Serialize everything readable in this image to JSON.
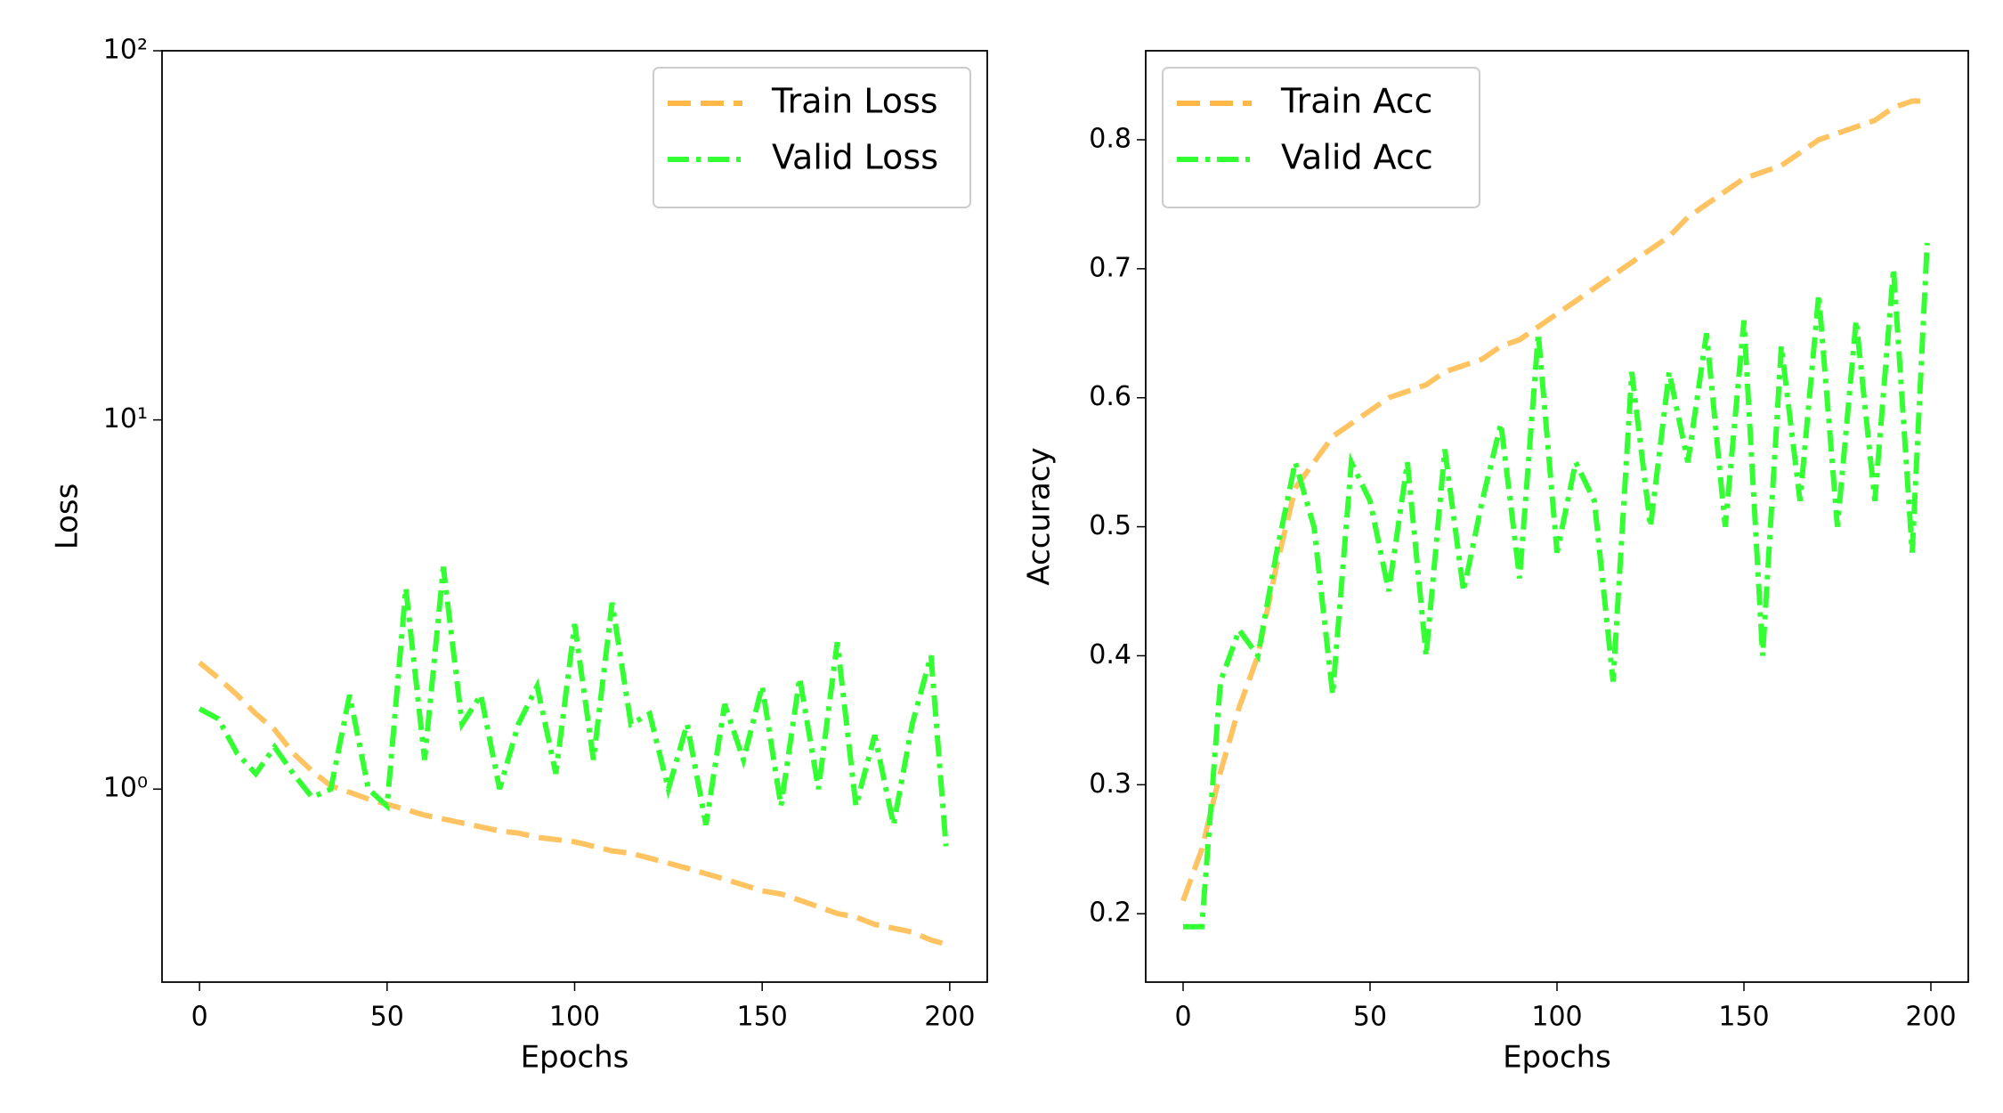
{
  "chart_data": [
    {
      "type": "line",
      "xlabel": "Epochs",
      "ylabel": "Loss",
      "yscale": "log",
      "x": [
        0,
        5,
        10,
        15,
        20,
        25,
        30,
        35,
        40,
        45,
        50,
        55,
        60,
        65,
        70,
        75,
        80,
        85,
        90,
        95,
        100,
        105,
        110,
        115,
        120,
        125,
        130,
        135,
        140,
        145,
        150,
        155,
        160,
        165,
        170,
        175,
        180,
        185,
        190,
        195,
        199
      ],
      "series": [
        {
          "name": "Train Loss",
          "color": "#ffb845",
          "linestyle": "dashed",
          "values": [
            2.2,
            2.0,
            1.8,
            1.6,
            1.45,
            1.25,
            1.12,
            1.02,
            0.98,
            0.94,
            0.91,
            0.88,
            0.85,
            0.83,
            0.81,
            0.79,
            0.77,
            0.76,
            0.74,
            0.73,
            0.72,
            0.7,
            0.68,
            0.67,
            0.65,
            0.63,
            0.61,
            0.59,
            0.57,
            0.55,
            0.53,
            0.52,
            0.5,
            0.48,
            0.46,
            0.45,
            0.43,
            0.42,
            0.41,
            0.39,
            0.38
          ]
        },
        {
          "name": "Valid Loss",
          "color": "#33ff33",
          "linestyle": "dashdot",
          "values": [
            1.65,
            1.55,
            1.25,
            1.1,
            1.3,
            1.1,
            0.95,
            1.0,
            1.8,
            1.0,
            0.9,
            3.5,
            1.2,
            4.0,
            1.5,
            1.8,
            1.0,
            1.5,
            1.9,
            1.1,
            2.8,
            1.2,
            3.2,
            1.5,
            1.6,
            1.0,
            1.5,
            0.8,
            1.7,
            1.2,
            1.9,
            0.9,
            2.0,
            1.0,
            2.5,
            0.9,
            1.4,
            0.8,
            1.5,
            2.3,
            0.7
          ]
        }
      ],
      "xlim": [
        -10,
        210
      ],
      "xticks": [
        0,
        50,
        100,
        150,
        200
      ],
      "ylim": [
        0.3,
        100
      ],
      "yticks": [
        {
          "value": 1,
          "label": "10⁰"
        },
        {
          "value": 10,
          "label": "10¹"
        },
        {
          "value": 100,
          "label": "10²"
        }
      ],
      "legend": "upper right"
    },
    {
      "type": "line",
      "xlabel": "Epochs",
      "ylabel": "Accuracy",
      "x": [
        0,
        5,
        10,
        15,
        20,
        25,
        30,
        35,
        40,
        45,
        50,
        55,
        60,
        65,
        70,
        75,
        80,
        85,
        90,
        95,
        100,
        105,
        110,
        115,
        120,
        125,
        130,
        135,
        140,
        145,
        150,
        155,
        160,
        165,
        170,
        175,
        180,
        185,
        190,
        195,
        199
      ],
      "series": [
        {
          "name": "Train Acc",
          "color": "#ffb845",
          "linestyle": "dashed",
          "values": [
            0.21,
            0.25,
            0.31,
            0.36,
            0.4,
            0.47,
            0.53,
            0.55,
            0.57,
            0.58,
            0.59,
            0.6,
            0.605,
            0.61,
            0.62,
            0.625,
            0.63,
            0.64,
            0.645,
            0.655,
            0.665,
            0.675,
            0.685,
            0.695,
            0.705,
            0.715,
            0.725,
            0.74,
            0.75,
            0.76,
            0.77,
            0.775,
            0.78,
            0.79,
            0.8,
            0.805,
            0.81,
            0.815,
            0.825,
            0.83,
            0.83
          ]
        },
        {
          "name": "Valid Acc",
          "color": "#33ff33",
          "linestyle": "dashdot",
          "values": [
            0.19,
            0.19,
            0.38,
            0.42,
            0.4,
            0.48,
            0.55,
            0.5,
            0.37,
            0.55,
            0.52,
            0.45,
            0.55,
            0.4,
            0.56,
            0.45,
            0.52,
            0.58,
            0.46,
            0.65,
            0.48,
            0.55,
            0.52,
            0.38,
            0.62,
            0.5,
            0.62,
            0.55,
            0.65,
            0.5,
            0.66,
            0.4,
            0.64,
            0.52,
            0.68,
            0.5,
            0.66,
            0.52,
            0.7,
            0.48,
            0.72
          ]
        }
      ],
      "xlim": [
        -10,
        210
      ],
      "xticks": [
        0,
        50,
        100,
        150,
        200
      ],
      "ylim": [
        0.147,
        0.869
      ],
      "yticks": [
        0.2,
        0.3,
        0.4,
        0.5,
        0.6,
        0.7,
        0.8
      ],
      "legend": "upper left"
    }
  ]
}
